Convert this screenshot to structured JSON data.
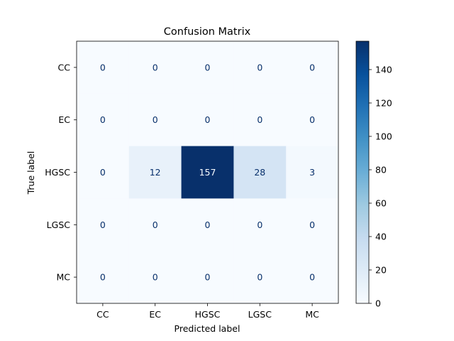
{
  "chart_data": {
    "type": "heatmap",
    "title": "Confusion Matrix",
    "xlabel": "Predicted label",
    "ylabel": "True label",
    "x_categories": [
      "CC",
      "EC",
      "HGSC",
      "LGSC",
      "MC"
    ],
    "y_categories": [
      "CC",
      "EC",
      "HGSC",
      "LGSC",
      "MC"
    ],
    "values": [
      [
        0,
        0,
        0,
        0,
        0
      ],
      [
        0,
        0,
        0,
        0,
        0
      ],
      [
        0,
        12,
        157,
        28,
        3
      ],
      [
        0,
        0,
        0,
        0,
        0
      ],
      [
        0,
        0,
        0,
        0,
        0
      ]
    ],
    "colormap": "Blues",
    "colorbar": {
      "range": [
        0,
        157
      ],
      "ticks": [
        0,
        20,
        40,
        60,
        80,
        100,
        120,
        140
      ]
    },
    "colors": {
      "low": "#f7fbff",
      "high": "#08306b",
      "text_on_light": "#08306b",
      "text_on_dark": "#f7fbff"
    }
  }
}
